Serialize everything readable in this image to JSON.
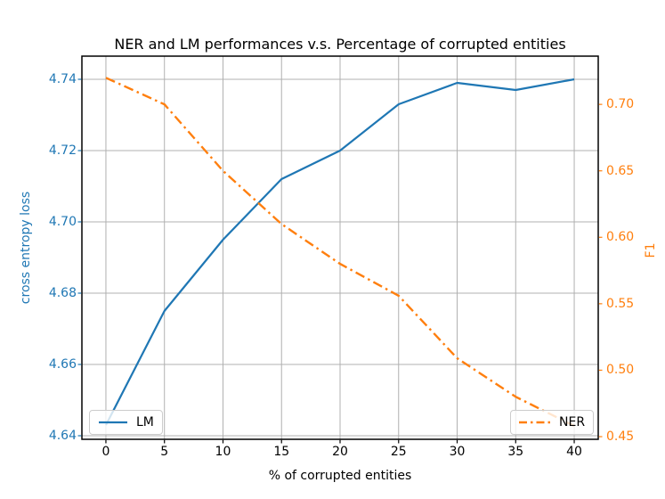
{
  "chart_data": {
    "type": "line",
    "title": "NER and LM performances v.s. Percentage of corrupted entities",
    "xlabel": "% of corrupted entities",
    "ylabel_left": "cross entropy loss",
    "ylabel_right": "F1",
    "x": [
      0,
      5,
      10,
      15,
      20,
      25,
      30,
      35,
      40
    ],
    "series": [
      {
        "name": "LM",
        "axis": "left",
        "color": "#1f77b4",
        "linestyle": "solid",
        "linewidth": 2.2,
        "values": [
          4.643,
          4.675,
          4.695,
          4.712,
          4.72,
          4.733,
          4.739,
          4.737,
          4.74
        ]
      },
      {
        "name": "NER",
        "axis": "right",
        "color": "#ff7f0e",
        "linestyle": "dashdot",
        "linewidth": 2.4,
        "values": [
          0.72,
          0.7,
          0.65,
          0.61,
          0.58,
          0.556,
          0.509,
          0.48,
          0.458
        ]
      }
    ],
    "axes": {
      "xlim": [
        -2.05,
        42.05
      ],
      "ylim_left": [
        4.639,
        4.7465
      ],
      "ylim_right": [
        0.448,
        0.7363
      ],
      "x_ticks": [
        0,
        5,
        10,
        15,
        20,
        25,
        30,
        35,
        40
      ],
      "x_tick_labels": [
        "0",
        "5",
        "10",
        "15",
        "20",
        "25",
        "30",
        "35",
        "40"
      ],
      "left_ticks": [
        4.64,
        4.66,
        4.68,
        4.7,
        4.72,
        4.74
      ],
      "left_tick_labels": [
        "4.64",
        "4.66",
        "4.68",
        "4.70",
        "4.72",
        "4.74"
      ],
      "right_ticks": [
        0.45,
        0.5,
        0.55,
        0.6,
        0.65,
        0.7
      ],
      "right_tick_labels": [
        "0.45",
        "0.50",
        "0.55",
        "0.60",
        "0.65",
        "0.70"
      ],
      "left_axis_color": "#1f77b4",
      "right_axis_color": "#ff7f0e",
      "x_tick_color": "#000000",
      "grid": true,
      "grid_color": "#b0b0b0",
      "spine_color": "#000000"
    },
    "legends": [
      {
        "label": "LM",
        "position": "lower left"
      },
      {
        "label": "NER",
        "position": "lower right"
      }
    ]
  }
}
